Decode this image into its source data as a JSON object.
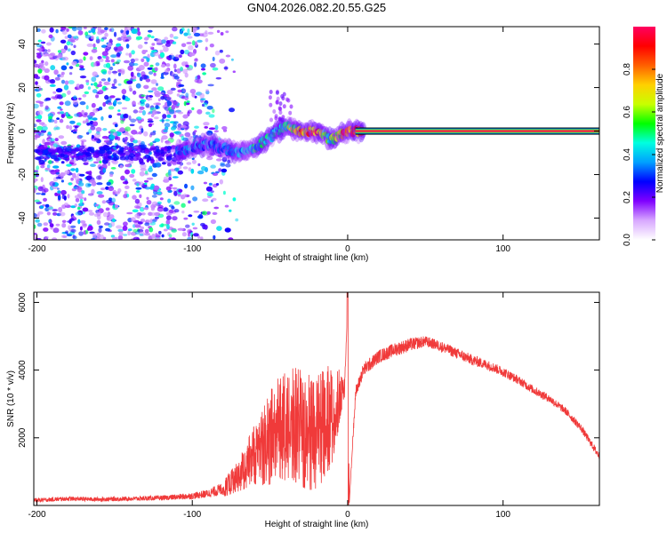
{
  "figure": {
    "title": "GN04.2026.082.20.55.G25"
  },
  "chart_data": [
    {
      "type": "heatmap",
      "title": "GN04.2026.082.20.55.G25",
      "xlabel": "Height of straight line (km)",
      "ylabel": "Frequency (Hz)",
      "xlim": [
        -202,
        162
      ],
      "ylim": [
        -50,
        48
      ],
      "xticks": [
        -200,
        -100,
        0,
        100
      ],
      "yticks": [
        -40,
        -20,
        0,
        20,
        40
      ],
      "colorbar": {
        "label": "Normalized spectral amplitude",
        "range": [
          0,
          1
        ],
        "ticks": [
          "0.0",
          "0.2",
          "0.4",
          "0.6",
          "0.8"
        ],
        "colors": [
          "#ffffff",
          "#d8a8ff",
          "#8000ff",
          "#0000ff",
          "#00a0ff",
          "#00ffe0",
          "#00ff00",
          "#c8ff00",
          "#ffd000",
          "#ff6000",
          "#ff0000",
          "#ff0060"
        ]
      },
      "ridge": {
        "description_points_x": [
          -110,
          -100,
          -90,
          -80,
          -70,
          -60,
          -50,
          -45,
          -40,
          -30,
          -20,
          -15,
          -10,
          -5,
          0,
          10,
          50,
          100,
          160
        ],
        "frequency_y": [
          -10,
          -8,
          -6,
          -8,
          -10,
          -8,
          -3,
          0,
          2,
          0,
          0,
          -2,
          -4,
          -2,
          0,
          0,
          0,
          0,
          0
        ],
        "amplitude": [
          0.3,
          0.4,
          0.35,
          0.3,
          0.4,
          0.45,
          0.45,
          0.5,
          0.45,
          0.8,
          0.9,
          0.6,
          0.5,
          0.8,
          0.95,
          1.0,
          1.0,
          1.0,
          1.0
        ]
      },
      "noise_region_x": [
        -202,
        -80
      ]
    },
    {
      "type": "line",
      "xlabel": "Height of straight line (km)",
      "ylabel": "SNR (10 * v/v)",
      "xlim": [
        -202,
        162
      ],
      "ylim": [
        0,
        6300
      ],
      "xticks": [
        -200,
        -100,
        0,
        100
      ],
      "yticks": [
        2000,
        4000,
        6000
      ],
      "color": "#f03a3a",
      "series": [
        {
          "name": "SNR",
          "x": [
            -202,
            -180,
            -160,
            -140,
            -120,
            -100,
            -90,
            -80,
            -70,
            -60,
            -50,
            -40,
            -30,
            -20,
            -10,
            -5,
            -2,
            0,
            1,
            5,
            10,
            20,
            30,
            40,
            50,
            60,
            70,
            80,
            90,
            100,
            110,
            120,
            130,
            140,
            150,
            162
          ],
          "y": [
            150,
            200,
            180,
            200,
            220,
            280,
            350,
            500,
            900,
            1500,
            2000,
            2400,
            2300,
            2200,
            2700,
            3200,
            3500,
            6000,
            50,
            3300,
            4000,
            4400,
            4600,
            4750,
            4850,
            4700,
            4500,
            4300,
            4150,
            3950,
            3700,
            3400,
            3150,
            2800,
            2300,
            1450
          ],
          "noise_amplitude": [
            80,
            80,
            80,
            80,
            90,
            120,
            150,
            250,
            500,
            900,
            1400,
            1700,
            1800,
            1800,
            1500,
            800,
            300,
            100,
            0,
            250,
            250,
            250,
            250,
            250,
            200,
            200,
            200,
            200,
            180,
            180,
            160,
            160,
            150,
            140,
            140,
            140
          ]
        }
      ]
    }
  ]
}
